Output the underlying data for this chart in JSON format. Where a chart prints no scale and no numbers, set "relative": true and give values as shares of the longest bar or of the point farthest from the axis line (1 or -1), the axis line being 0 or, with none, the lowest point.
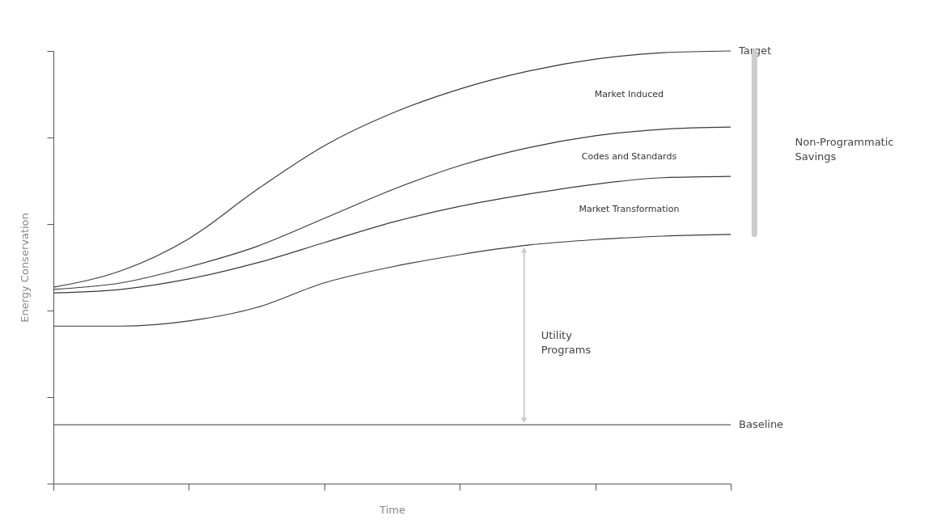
{
  "chart_data": {
    "type": "line",
    "relative": true,
    "xlabel": "Time",
    "ylabel": "Energy Conservation",
    "categories": [
      null,
      null,
      null,
      null,
      null,
      null,
      null,
      null,
      null,
      null,
      null
    ],
    "series": [
      {
        "name": "Target",
        "color": "#3a3a3a",
        "values": [
          0.454,
          0.492,
          0.566,
          0.679,
          0.781,
          0.856,
          0.912,
          0.953,
          0.981,
          0.996,
          1
        ]
      },
      {
        "color": "#3a3a3a",
        "values": [
          0.449,
          0.464,
          0.501,
          0.548,
          0.613,
          0.679,
          0.735,
          0.776,
          0.804,
          0.819,
          0.824
        ]
      },
      {
        "color": "#3a3a3a",
        "values": [
          0.441,
          0.449,
          0.473,
          0.51,
          0.557,
          0.604,
          0.641,
          0.669,
          0.692,
          0.707,
          0.71
        ]
      },
      {
        "color": "#3a3a3a",
        "values": [
          0.364,
          0.364,
          0.376,
          0.407,
          0.464,
          0.501,
          0.529,
          0.551,
          0.564,
          0.572,
          0.576
        ]
      },
      {
        "name": "Baseline",
        "color": "#3a3a3a",
        "values": [
          0.136,
          0.136,
          0.136,
          0.136,
          0.136,
          0.136,
          0.136,
          0.136,
          0.136,
          0.136,
          0.136
        ]
      }
    ],
    "annotations": [
      "Market Induced",
      "Codes and Standards",
      "Market Transformation",
      "Utility Programs",
      "Non-Programmatic Savings"
    ],
    "tick_labels": false,
    "legend": false,
    "grid": false
  }
}
